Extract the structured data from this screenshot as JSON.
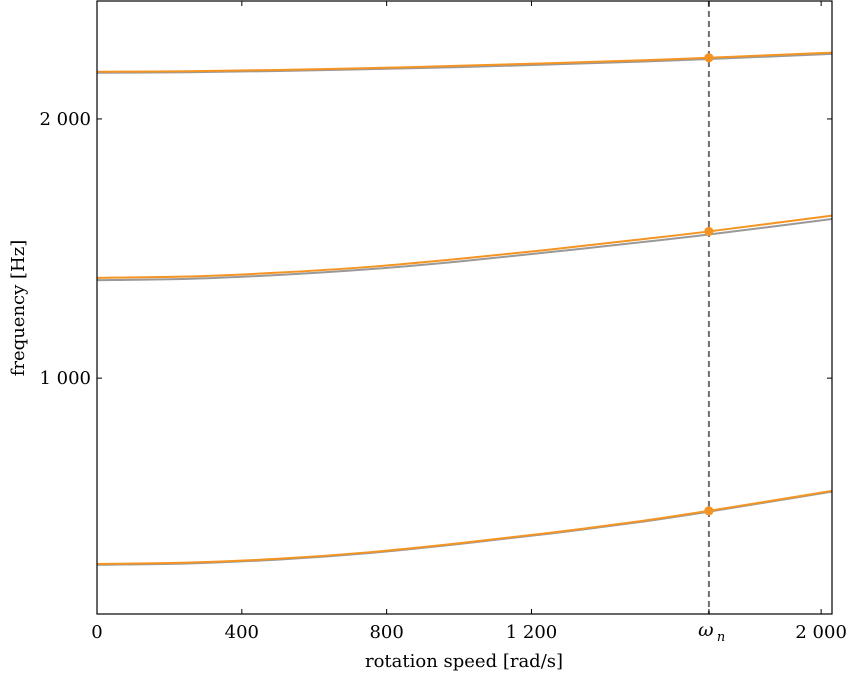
{
  "chart_data": {
    "type": "line",
    "title": "",
    "xlabel": "rotation speed [rad/s]",
    "ylabel": "frequency [Hz]",
    "xlim": [
      0,
      2030
    ],
    "ylim": [
      90,
      2455
    ],
    "xticks": [
      {
        "value": 0,
        "label": "0"
      },
      {
        "value": 400,
        "label": "400"
      },
      {
        "value": 800,
        "label": "800"
      },
      {
        "value": 1200,
        "label": "1 200"
      },
      {
        "value": 2000,
        "label": "2 000"
      }
    ],
    "xtick_special": {
      "value": 1690,
      "label_main": "ω",
      "label_sub": "n"
    },
    "yticks": [
      {
        "value": 1000,
        "label": "1 000"
      },
      {
        "value": 2000,
        "label": "2 000"
      }
    ],
    "grid": false,
    "vertical_line": {
      "x": 1690,
      "style": "dashed",
      "color": "#707070"
    },
    "series": [
      {
        "mode": 1,
        "color": "#999999",
        "x": [
          0,
          250,
          500,
          750,
          1000,
          1250,
          1500,
          1690,
          2030
        ],
        "y": [
          280,
          285,
          300,
          325,
          360,
          400,
          445,
          485,
          562
        ]
      },
      {
        "mode": 1,
        "color": "#f39423",
        "x": [
          0,
          250,
          500,
          750,
          1000,
          1250,
          1500,
          1690,
          2030
        ],
        "y": [
          283,
          288,
          303,
          328,
          363,
          403,
          448,
          488,
          565
        ]
      },
      {
        "mode": 2,
        "color": "#999999",
        "x": [
          0,
          250,
          500,
          750,
          1000,
          1250,
          1500,
          1690,
          2030
        ],
        "y": [
          1378,
          1383,
          1398,
          1420,
          1450,
          1486,
          1524,
          1554,
          1614
        ]
      },
      {
        "mode": 2,
        "color": "#f39423",
        "x": [
          0,
          250,
          500,
          750,
          1000,
          1250,
          1500,
          1690,
          2030
        ],
        "y": [
          1387,
          1392,
          1407,
          1429,
          1460,
          1496,
          1535,
          1566,
          1627
        ]
      },
      {
        "mode": 3,
        "color": "#999999",
        "x": [
          0,
          250,
          500,
          750,
          1000,
          1250,
          1500,
          1690,
          2030
        ],
        "y": [
          2178,
          2180,
          2185,
          2192,
          2200,
          2210,
          2221,
          2231,
          2251
        ]
      },
      {
        "mode": 3,
        "color": "#f39423",
        "x": [
          0,
          250,
          500,
          750,
          1000,
          1250,
          1500,
          1690,
          2030
        ],
        "y": [
          2182,
          2184,
          2189,
          2196,
          2205,
          2215,
          2226,
          2236,
          2256
        ]
      }
    ],
    "markers": {
      "color": "#f39423",
      "points": [
        {
          "x": 1690,
          "y": 488
        },
        {
          "x": 1690,
          "y": 1566
        },
        {
          "x": 1690,
          "y": 2236
        }
      ]
    }
  }
}
